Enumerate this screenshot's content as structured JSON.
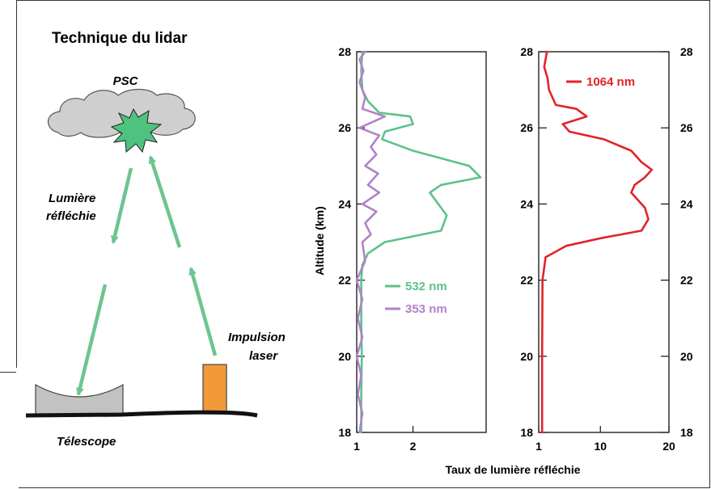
{
  "schematic": {
    "title": "Technique du lidar",
    "psc_label": "PSC",
    "reflected_label_line1": "Lumière",
    "reflected_label_line2": "réfléchie",
    "laser_label_line1": "Impulsion",
    "laser_label_line2": "laser",
    "telescope_label": "Télescope",
    "colors": {
      "cloud": "#cfcfcf",
      "burst": "#4ec27f",
      "beam": "#6cc58f",
      "telescope": "#c2c2c2",
      "laser": "#f29a3a"
    }
  },
  "y_axis_label": "Altitude (km)",
  "x_axis_label": "Taux de lumière réfléchie",
  "chart_data": [
    {
      "type": "line",
      "ylim": [
        18,
        28
      ],
      "xlim": [
        1,
        3.3
      ],
      "x_ticks": [
        1,
        2
      ],
      "y_ticks": [
        18,
        20,
        22,
        24,
        26,
        28
      ],
      "series": [
        {
          "name": "532 nm",
          "color": "#5cc28a",
          "points": [
            [
              1.08,
              18
            ],
            [
              1.08,
              19
            ],
            [
              1.09,
              20
            ],
            [
              1.08,
              21
            ],
            [
              1.08,
              22
            ],
            [
              1.1,
              22.4
            ],
            [
              1.2,
              22.7
            ],
            [
              1.5,
              23.0
            ],
            [
              2.5,
              23.3
            ],
            [
              2.6,
              23.7
            ],
            [
              2.4,
              24.1
            ],
            [
              2.3,
              24.3
            ],
            [
              2.5,
              24.5
            ],
            [
              3.2,
              24.7
            ],
            [
              3.0,
              25.0
            ],
            [
              2.0,
              25.4
            ],
            [
              1.45,
              25.7
            ],
            [
              1.5,
              25.9
            ],
            [
              2.0,
              26.1
            ],
            [
              1.95,
              26.3
            ],
            [
              1.4,
              26.4
            ],
            [
              1.2,
              26.7
            ],
            [
              1.1,
              27.0
            ],
            [
              1.08,
              27.5
            ],
            [
              1.1,
              28
            ]
          ]
        },
        {
          "name": "353 nm",
          "color": "#b083c8",
          "points": [
            [
              1.05,
              18
            ],
            [
              1.1,
              18.5
            ],
            [
              1.02,
              19
            ],
            [
              1.08,
              19.5
            ],
            [
              1.0,
              20
            ],
            [
              1.1,
              20.5
            ],
            [
              1.02,
              21
            ],
            [
              1.1,
              21.5
            ],
            [
              1.0,
              22
            ],
            [
              1.15,
              22.5
            ],
            [
              1.1,
              23
            ],
            [
              1.25,
              23.2
            ],
            [
              1.15,
              23.5
            ],
            [
              1.35,
              23.8
            ],
            [
              1.1,
              24.0
            ],
            [
              1.4,
              24.3
            ],
            [
              1.2,
              24.5
            ],
            [
              1.38,
              24.8
            ],
            [
              1.15,
              25.0
            ],
            [
              1.35,
              25.3
            ],
            [
              1.25,
              25.5
            ],
            [
              1.4,
              25.8
            ],
            [
              1.05,
              26.0
            ],
            [
              1.5,
              26.3
            ],
            [
              1.1,
              26.5
            ],
            [
              1.15,
              26.8
            ],
            [
              1.05,
              27.2
            ],
            [
              1.12,
              27.5
            ],
            [
              1.05,
              27.8
            ],
            [
              1.15,
              28
            ]
          ]
        }
      ]
    },
    {
      "type": "line",
      "ylim": [
        18,
        28
      ],
      "xlim": [
        1,
        20
      ],
      "x_ticks": [
        1,
        10,
        20
      ],
      "y_ticks": [
        18,
        20,
        22,
        24,
        26,
        28
      ],
      "series": [
        {
          "name": "1064 nm",
          "color": "#e2232a",
          "points": [
            [
              1.5,
              18
            ],
            [
              1.5,
              20
            ],
            [
              1.55,
              22
            ],
            [
              2.0,
              22.6
            ],
            [
              5.0,
              22.9
            ],
            [
              10.0,
              23.1
            ],
            [
              16.0,
              23.3
            ],
            [
              17.0,
              23.6
            ],
            [
              16.5,
              23.9
            ],
            [
              15.5,
              24.1
            ],
            [
              14.5,
              24.3
            ],
            [
              15.0,
              24.5
            ],
            [
              16.5,
              24.7
            ],
            [
              17.5,
              24.9
            ],
            [
              16.0,
              25.1
            ],
            [
              14.5,
              25.4
            ],
            [
              10.5,
              25.7
            ],
            [
              5.5,
              25.9
            ],
            [
              4.5,
              26.1
            ],
            [
              8.0,
              26.3
            ],
            [
              6.5,
              26.5
            ],
            [
              3.5,
              26.6
            ],
            [
              2.5,
              27.0
            ],
            [
              2.3,
              27.3
            ],
            [
              1.8,
              27.6
            ],
            [
              2.2,
              28
            ]
          ]
        }
      ]
    }
  ]
}
